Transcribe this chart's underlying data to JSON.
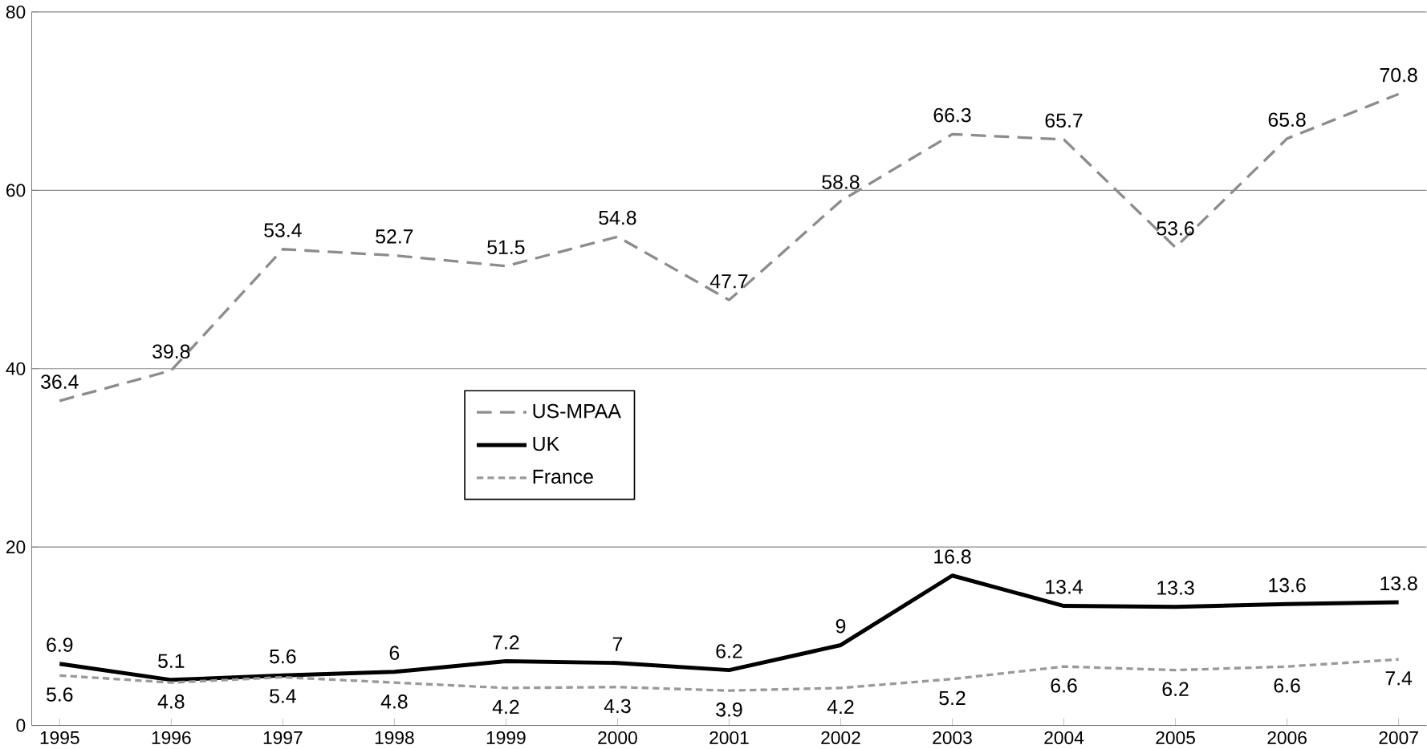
{
  "chart_data": {
    "type": "line",
    "categories": [
      "1995",
      "1996",
      "1997",
      "1998",
      "1999",
      "2000",
      "2001",
      "2002",
      "2003",
      "2004",
      "2005",
      "2006",
      "2007"
    ],
    "series": [
      {
        "name": "US-MPAA",
        "color": "#8c8c8c",
        "line_style": "dashed",
        "values": [
          36.4,
          39.8,
          53.4,
          52.7,
          51.5,
          54.8,
          47.7,
          58.8,
          66.3,
          65.7,
          53.6,
          65.8,
          70.8
        ]
      },
      {
        "name": "UK",
        "color": "#000000",
        "line_style": "solid",
        "values": [
          6.9,
          5.1,
          5.6,
          6,
          7.2,
          7,
          6.2,
          9,
          16.8,
          13.4,
          13.3,
          13.6,
          13.8
        ]
      },
      {
        "name": "France",
        "color": "#999999",
        "line_style": "dotted",
        "values": [
          5.6,
          4.8,
          5.4,
          4.8,
          4.2,
          4.3,
          3.9,
          4.2,
          5.2,
          6.6,
          6.2,
          6.6,
          7.4
        ]
      }
    ],
    "ylim": [
      0,
      80
    ],
    "yticks": [
      0,
      20,
      40,
      60,
      80
    ],
    "grid": "y",
    "legend": "center",
    "data_labels": true,
    "marker": "none"
  }
}
